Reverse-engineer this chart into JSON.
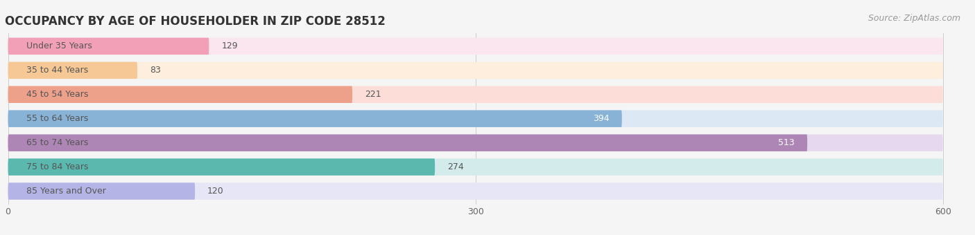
{
  "title": "OCCUPANCY BY AGE OF HOUSEHOLDER IN ZIP CODE 28512",
  "source": "Source: ZipAtlas.com",
  "categories": [
    "Under 35 Years",
    "35 to 44 Years",
    "45 to 54 Years",
    "55 to 64 Years",
    "65 to 74 Years",
    "75 to 84 Years",
    "85 Years and Over"
  ],
  "values": [
    129,
    83,
    221,
    394,
    513,
    274,
    120
  ],
  "bar_colors": [
    "#f2a0b8",
    "#f5c896",
    "#eda08a",
    "#88b2d6",
    "#ae86b6",
    "#5ab8ae",
    "#b4b4e6"
  ],
  "bar_bg_colors": [
    "#fbe6ef",
    "#fdeedd",
    "#fcddd8",
    "#dce8f4",
    "#e6d8ee",
    "#d3eceb",
    "#e6e6f6"
  ],
  "value_inside": [
    false,
    false,
    false,
    true,
    true,
    false,
    false
  ],
  "xlim_max": 650,
  "display_xlim_max": 600,
  "xticks": [
    0,
    300,
    600
  ],
  "background_color": "#f5f5f5",
  "title_fontsize": 12,
  "source_fontsize": 9,
  "label_fontsize": 9,
  "value_fontsize": 9
}
